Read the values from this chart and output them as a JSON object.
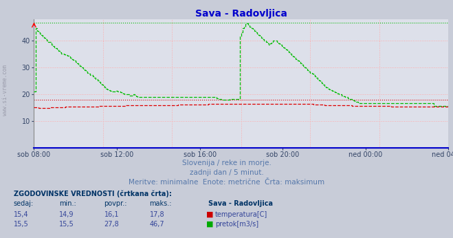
{
  "title": "Sava - Radovljica",
  "title_color": "#0000cc",
  "bg_color": "#c8ccd8",
  "plot_bg_color": "#dde0ea",
  "watermark": "www.si-vreme.com",
  "subtitle1": "Slovenija / reke in morje.",
  "subtitle2": "zadnji dan / 5 minut.",
  "subtitle3": "Meritve: minimalne  Enote: metrične  Črta: maksimum",
  "subtitle_color": "#5577aa",
  "table_header": "ZGODOVINSKE VREDNOSTI (črtkana črta):",
  "table_cols": [
    "sedaj:",
    "min.:",
    "povpr.:",
    "maks.:",
    "Sava - Radovljica"
  ],
  "row1_vals": [
    "15,4",
    "14,9",
    "16,1",
    "17,8"
  ],
  "row1_label": "temperatura[C]",
  "row1_color": "#cc0000",
  "row2_vals": [
    "15,5",
    "15,5",
    "27,8",
    "46,7"
  ],
  "row2_label": "pretok[m3/s]",
  "row2_color": "#00aa00",
  "ylim": [
    0,
    48
  ],
  "yticks": [
    10,
    20,
    30,
    40
  ],
  "xticklabels": [
    "sob 08:00",
    "sob 12:00",
    "sob 16:00",
    "sob 20:00",
    "ned 00:00",
    "ned 04:00"
  ],
  "n_points": 289,
  "temp_max_hline": 17.8,
  "temp_min_hline": 14.9,
  "flow_max_hline": 46.7,
  "flow_min_hline": 15.5,
  "temp_color": "#dd0000",
  "flow_color": "#00bb00",
  "hline_temp_color": "#dd0000",
  "hline_flow_color": "#00bb00",
  "temp_data": [
    15.1,
    15.0,
    15.0,
    14.9,
    14.9,
    14.9,
    14.9,
    14.9,
    14.9,
    14.9,
    14.9,
    15.0,
    15.0,
    15.0,
    15.0,
    15.0,
    15.1,
    15.1,
    15.1,
    15.1,
    15.1,
    15.1,
    15.2,
    15.2,
    15.2,
    15.2,
    15.2,
    15.2,
    15.3,
    15.3,
    15.3,
    15.3,
    15.3,
    15.3,
    15.3,
    15.3,
    15.4,
    15.4,
    15.4,
    15.4,
    15.4,
    15.4,
    15.4,
    15.4,
    15.4,
    15.5,
    15.5,
    15.5,
    15.5,
    15.5,
    15.5,
    15.5,
    15.5,
    15.5,
    15.5,
    15.5,
    15.6,
    15.6,
    15.6,
    15.6,
    15.6,
    15.6,
    15.6,
    15.6,
    15.7,
    15.7,
    15.7,
    15.7,
    15.7,
    15.7,
    15.7,
    15.7,
    15.7,
    15.7,
    15.7,
    15.7,
    15.7,
    15.7,
    15.7,
    15.8,
    15.8,
    15.8,
    15.8,
    15.8,
    15.8,
    15.8,
    15.8,
    15.8,
    15.8,
    15.8,
    15.8,
    15.9,
    15.9,
    15.9,
    15.9,
    15.9,
    15.9,
    15.9,
    15.9,
    15.9,
    16.0,
    16.0,
    16.0,
    16.0,
    16.0,
    16.0,
    16.0,
    16.0,
    16.0,
    16.0,
    16.0,
    16.0,
    16.0,
    16.1,
    16.1,
    16.1,
    16.1,
    16.1,
    16.1,
    16.1,
    16.1,
    16.2,
    16.2,
    16.2,
    16.2,
    16.2,
    16.2,
    16.2,
    16.2,
    16.2,
    16.2,
    16.2,
    16.2,
    16.2,
    16.3,
    16.3,
    16.3,
    16.3,
    16.3,
    16.3,
    16.3,
    16.3,
    16.3,
    16.3,
    16.3,
    16.3,
    16.3,
    16.4,
    16.4,
    16.4,
    16.4,
    16.4,
    16.4,
    16.4,
    16.4,
    16.4,
    16.4,
    16.4,
    16.4,
    16.4,
    16.4,
    16.4,
    16.4,
    16.4,
    16.4,
    16.4,
    16.4,
    16.4,
    16.4,
    16.4,
    16.4,
    16.4,
    16.4,
    16.4,
    16.4,
    16.4,
    16.4,
    16.4,
    16.4,
    16.3,
    16.3,
    16.3,
    16.3,
    16.3,
    16.3,
    16.3,
    16.3,
    16.3,
    16.2,
    16.2,
    16.2,
    16.2,
    16.2,
    16.2,
    16.1,
    16.1,
    16.1,
    16.0,
    16.0,
    16.0,
    16.0,
    16.0,
    15.9,
    15.9,
    15.9,
    15.9,
    15.9,
    15.8,
    15.8,
    15.8,
    15.8,
    15.8,
    15.8,
    15.8,
    15.7,
    15.7,
    15.7,
    15.7,
    15.7,
    15.7,
    15.7,
    15.6,
    15.6,
    15.6,
    15.6,
    15.6,
    15.6,
    15.6,
    15.6,
    15.6,
    15.6,
    15.6,
    15.6,
    15.6,
    15.5,
    15.5,
    15.5,
    15.5,
    15.5,
    15.5,
    15.5,
    15.5,
    15.5,
    15.5,
    15.5,
    15.5,
    15.5,
    15.5,
    15.4,
    15.4,
    15.4,
    15.4,
    15.4,
    15.4,
    15.4,
    15.4,
    15.4,
    15.4,
    15.4,
    15.4,
    15.4,
    15.4,
    15.4,
    15.4,
    15.4,
    15.4,
    15.4,
    15.4,
    15.4,
    15.4,
    15.4,
    15.4,
    15.4,
    15.4,
    15.4,
    15.4,
    15.4,
    15.4,
    15.4,
    15.4,
    15.4,
    15.4,
    15.4,
    15.4,
    15.4,
    15.4,
    15.4,
    15.4,
    15.4
  ],
  "flow_data": [
    21.0,
    44.5,
    43.5,
    43.0,
    42.5,
    42.0,
    41.5,
    41.0,
    40.5,
    40.0,
    39.5,
    39.5,
    38.5,
    38.0,
    37.5,
    37.0,
    36.5,
    36.0,
    35.5,
    35.2,
    35.0,
    34.8,
    34.5,
    34.2,
    34.0,
    33.5,
    33.0,
    32.8,
    32.5,
    32.0,
    31.5,
    31.0,
    30.5,
    30.0,
    29.5,
    29.0,
    28.5,
    28.0,
    27.5,
    27.2,
    27.0,
    26.5,
    26.0,
    25.5,
    25.0,
    24.5,
    24.0,
    23.5,
    23.0,
    22.5,
    22.0,
    21.8,
    21.5,
    21.2,
    21.0,
    21.0,
    21.0,
    21.2,
    21.0,
    21.0,
    20.8,
    20.5,
    20.2,
    20.0,
    20.0,
    19.8,
    19.5,
    19.5,
    19.5,
    19.8,
    19.5,
    19.2,
    19.0,
    19.0,
    19.0,
    19.0,
    19.0,
    19.0,
    19.0,
    19.0,
    19.0,
    19.0,
    19.0,
    19.0,
    19.0,
    19.0,
    19.0,
    19.0,
    19.0,
    19.0,
    19.0,
    19.0,
    19.0,
    19.0,
    19.0,
    19.0,
    19.0,
    19.0,
    19.0,
    19.0,
    19.0,
    19.0,
    19.0,
    19.0,
    19.0,
    19.0,
    19.0,
    19.0,
    19.0,
    19.0,
    19.0,
    19.0,
    19.0,
    19.0,
    19.0,
    19.0,
    19.0,
    19.0,
    19.0,
    19.0,
    19.0,
    19.0,
    19.0,
    19.0,
    19.0,
    19.0,
    18.8,
    18.5,
    18.2,
    18.0,
    17.8,
    17.8,
    17.8,
    17.8,
    17.8,
    17.8,
    18.0,
    18.0,
    18.0,
    18.0,
    18.0,
    18.0,
    18.0,
    41.5,
    43.0,
    44.5,
    45.0,
    46.0,
    46.5,
    45.5,
    45.0,
    44.5,
    44.0,
    43.5,
    43.0,
    42.5,
    42.0,
    41.5,
    41.0,
    40.5,
    40.0,
    39.5,
    39.0,
    38.5,
    39.0,
    39.5,
    40.0,
    40.0,
    40.0,
    39.5,
    39.0,
    38.5,
    38.0,
    37.5,
    37.0,
    36.5,
    36.0,
    35.5,
    35.0,
    34.5,
    34.0,
    33.5,
    33.0,
    32.5,
    32.0,
    31.5,
    31.0,
    30.5,
    30.0,
    29.5,
    29.0,
    28.5,
    28.0,
    27.5,
    27.0,
    26.5,
    26.0,
    25.5,
    25.0,
    24.5,
    24.0,
    23.5,
    23.0,
    22.5,
    22.0,
    21.8,
    21.5,
    21.2,
    21.0,
    20.8,
    20.5,
    20.2,
    20.0,
    19.8,
    19.5,
    19.2,
    19.0,
    18.8,
    18.5,
    18.2,
    18.0,
    17.8,
    17.5,
    17.2,
    17.0,
    16.8,
    16.5,
    16.5,
    16.5,
    16.5,
    16.5,
    16.5,
    16.5,
    16.5,
    16.5,
    16.5,
    16.5,
    16.5,
    16.5,
    16.5,
    16.5,
    16.5,
    16.5,
    16.5,
    16.5,
    16.5,
    16.5,
    16.5,
    16.5,
    16.5,
    16.5,
    16.5,
    16.5,
    16.5,
    16.5,
    16.5,
    16.5,
    16.5,
    16.5,
    16.5,
    16.5,
    16.5,
    16.5,
    16.5,
    16.5,
    16.5,
    16.5,
    16.5,
    16.5,
    16.5,
    16.5,
    16.5,
    16.5,
    16.5,
    16.5,
    16.5,
    16.5,
    16.5,
    15.5,
    15.5,
    15.5,
    15.5,
    15.5,
    15.5,
    15.5,
    15.5,
    15.5,
    15.5,
    15.5
  ]
}
